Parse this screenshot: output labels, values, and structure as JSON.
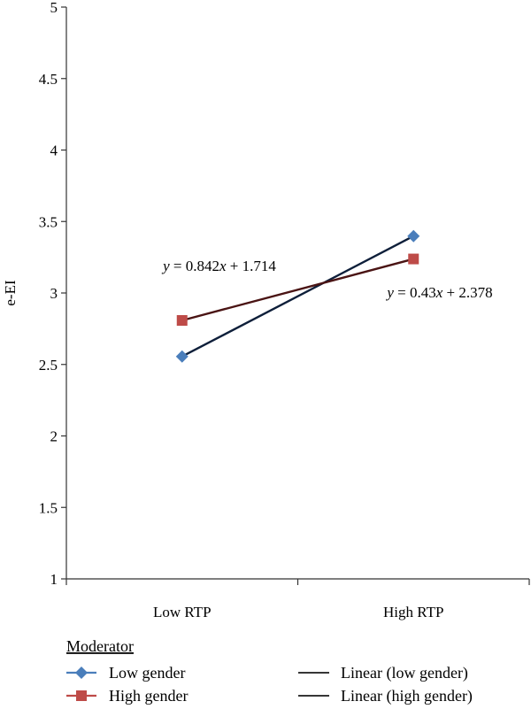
{
  "chart_data": {
    "type": "line",
    "categories": [
      "Low RTP",
      "High RTP"
    ],
    "ylabel": "e-EI",
    "ylim": [
      1,
      5
    ],
    "yticks": [
      "1",
      "1.5",
      "2",
      "2.5",
      "3",
      "3.5",
      "4",
      "4.5",
      "5"
    ],
    "grid": false,
    "series": [
      {
        "name": "Low gender",
        "values": [
          2.556,
          3.398
        ],
        "color": "#4a7ebb",
        "marker": "diamond"
      },
      {
        "name": "High gender",
        "values": [
          2.808,
          3.238
        ],
        "color": "#be4b48",
        "marker": "square"
      }
    ],
    "trendlines": [
      {
        "name": "Linear (low gender)",
        "color": "#0e1f3a",
        "equation": "y = 0.842x + 1.714",
        "slope": 0.842,
        "intercept": 1.714
      },
      {
        "name": "Linear (high gender)",
        "color": "#4a1414",
        "equation": "y = 0.43x + 2.378",
        "slope": 0.43,
        "intercept": 2.378
      }
    ],
    "legend": {
      "title": "Moderator",
      "placement": "bottom"
    }
  }
}
